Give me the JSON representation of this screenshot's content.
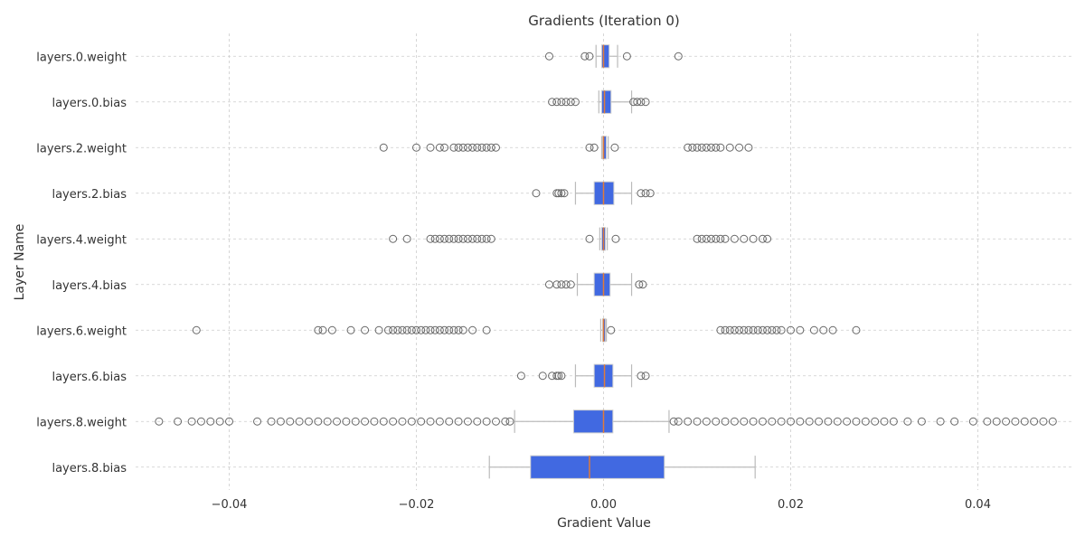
{
  "chart_data": {
    "type": "boxplot",
    "orientation": "horizontal",
    "title": "Gradients (Iteration 0)",
    "xlabel": "Gradient Value",
    "ylabel": "Layer Name",
    "xlim": [
      -0.05,
      0.05
    ],
    "xticks": [
      -0.04,
      -0.02,
      0.0,
      0.02,
      0.04
    ],
    "xtick_labels": [
      "−0.04",
      "−0.02",
      "0.00",
      "0.02",
      "0.04"
    ],
    "grid": true,
    "colors": {
      "box_fill": "#4169e1",
      "median": "#e07b39",
      "whisker": "#bbbbbb",
      "flier": "#666666",
      "grid": "#cccccc"
    },
    "categories": [
      "layers.0.weight",
      "layers.0.bias",
      "layers.2.weight",
      "layers.2.bias",
      "layers.4.weight",
      "layers.4.bias",
      "layers.6.weight",
      "layers.6.bias",
      "layers.8.weight",
      "layers.8.bias"
    ],
    "boxes": [
      {
        "label": "layers.0.weight",
        "whislo": -0.0008,
        "q1": -0.0002,
        "med": 0.0,
        "q3": 0.0006,
        "whishi": 0.0015,
        "fliers": [
          -0.0058,
          -0.002,
          -0.0015,
          0.0025,
          0.008
        ]
      },
      {
        "label": "layers.0.bias",
        "whislo": -0.0005,
        "q1": -0.0002,
        "med": 0.0001,
        "q3": 0.0008,
        "whishi": 0.003,
        "fliers": [
          -0.0055,
          -0.005,
          -0.0045,
          -0.004,
          -0.0035,
          -0.003,
          0.0032,
          0.0036,
          0.004,
          0.0045
        ]
      },
      {
        "label": "layers.2.weight",
        "whislo": -0.0002,
        "q1": -0.0001,
        "med": 0.0,
        "q3": 0.0003,
        "whishi": 0.0005,
        "fliers": [
          -0.0235,
          -0.02,
          -0.0185,
          -0.0175,
          -0.017,
          -0.016,
          -0.0155,
          -0.015,
          -0.0145,
          -0.014,
          -0.0135,
          -0.013,
          -0.0125,
          -0.012,
          -0.0115,
          -0.0015,
          -0.001,
          0.0012,
          0.009,
          0.0095,
          0.01,
          0.0105,
          0.011,
          0.0115,
          0.012,
          0.0125,
          0.0135,
          0.0145,
          0.0155
        ]
      },
      {
        "label": "layers.2.bias",
        "whislo": -0.003,
        "q1": -0.001,
        "med": 0.0,
        "q3": 0.0011,
        "whishi": 0.003,
        "fliers": [
          -0.0072,
          -0.005,
          -0.0048,
          -0.0045,
          -0.0042,
          0.004,
          0.0045,
          0.005
        ]
      },
      {
        "label": "layers.4.weight",
        "whislo": -0.0004,
        "q1": -0.0002,
        "med": 0.0,
        "q3": 0.0002,
        "whishi": 0.0004,
        "fliers": [
          -0.0225,
          -0.021,
          -0.0185,
          -0.018,
          -0.0175,
          -0.017,
          -0.0165,
          -0.016,
          -0.0155,
          -0.015,
          -0.0145,
          -0.014,
          -0.0135,
          -0.013,
          -0.0125,
          -0.012,
          -0.0015,
          0.0013,
          0.01,
          0.0105,
          0.011,
          0.0115,
          0.012,
          0.0125,
          0.013,
          0.014,
          0.015,
          0.016,
          0.017,
          0.0175
        ]
      },
      {
        "label": "layers.4.bias",
        "whislo": -0.0028,
        "q1": -0.001,
        "med": 0.0,
        "q3": 0.0007,
        "whishi": 0.003,
        "fliers": [
          -0.0058,
          -0.005,
          -0.0045,
          -0.004,
          -0.0035,
          0.0038,
          0.0042
        ]
      },
      {
        "label": "layers.6.weight",
        "whislo": -0.0003,
        "q1": -0.0001,
        "med": 0.0,
        "q3": 0.0002,
        "whishi": 0.0003,
        "fliers": [
          -0.0435,
          -0.0305,
          -0.03,
          -0.029,
          -0.027,
          -0.0255,
          -0.024,
          -0.023,
          -0.0225,
          -0.022,
          -0.0215,
          -0.021,
          -0.0205,
          -0.02,
          -0.0195,
          -0.019,
          -0.0185,
          -0.018,
          -0.0175,
          -0.017,
          -0.0165,
          -0.016,
          -0.0155,
          -0.015,
          -0.014,
          -0.0125,
          0.0008,
          0.0125,
          0.013,
          0.0135,
          0.014,
          0.0145,
          0.015,
          0.0155,
          0.016,
          0.0165,
          0.017,
          0.0175,
          0.018,
          0.0185,
          0.019,
          0.02,
          0.021,
          0.0225,
          0.0235,
          0.0245,
          0.027
        ]
      },
      {
        "label": "layers.6.bias",
        "whislo": -0.003,
        "q1": -0.001,
        "med": 0.0001,
        "q3": 0.001,
        "whishi": 0.003,
        "fliers": [
          -0.0088,
          -0.0065,
          -0.0055,
          -0.005,
          -0.0048,
          -0.0045,
          0.004,
          0.0045
        ]
      },
      {
        "label": "layers.8.weight",
        "whislo": -0.0095,
        "q1": -0.0032,
        "med": 0.0,
        "q3": 0.001,
        "whishi": 0.007,
        "fliers": [
          -0.0475,
          -0.0455,
          -0.044,
          -0.043,
          -0.042,
          -0.041,
          -0.04,
          -0.037,
          -0.0355,
          -0.0345,
          -0.0335,
          -0.0325,
          -0.0315,
          -0.0305,
          -0.0295,
          -0.0285,
          -0.0275,
          -0.0265,
          -0.0255,
          -0.0245,
          -0.0235,
          -0.0225,
          -0.0215,
          -0.0205,
          -0.0195,
          -0.0185,
          -0.0175,
          -0.0165,
          -0.0155,
          -0.0145,
          -0.0135,
          -0.0125,
          -0.0115,
          -0.0105,
          -0.01,
          0.0075,
          0.008,
          0.009,
          0.01,
          0.011,
          0.012,
          0.013,
          0.014,
          0.015,
          0.016,
          0.017,
          0.018,
          0.019,
          0.02,
          0.021,
          0.022,
          0.023,
          0.024,
          0.025,
          0.026,
          0.027,
          0.028,
          0.029,
          0.03,
          0.031,
          0.0325,
          0.034,
          0.036,
          0.0375,
          0.0395,
          0.041,
          0.042,
          0.043,
          0.044,
          0.045,
          0.046,
          0.047,
          0.048
        ]
      },
      {
        "label": "layers.8.bias",
        "whislo": -0.0122,
        "q1": -0.0078,
        "med": -0.0015,
        "q3": 0.0065,
        "whishi": 0.0162,
        "fliers": []
      }
    ]
  }
}
